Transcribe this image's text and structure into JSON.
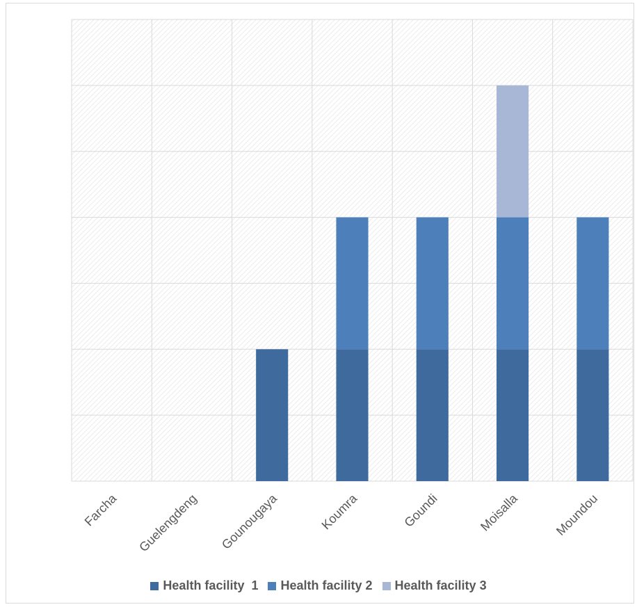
{
  "chart_data": {
    "type": "bar",
    "stacked": true,
    "categories": [
      "Farcha",
      "Guelengdeng",
      "Gounougaya",
      "Koumra",
      "Goundi",
      "Moisalla",
      "Moundou"
    ],
    "series": [
      {
        "name": "Health facility  1",
        "color": "#3f6a9d",
        "values": [
          0,
          0,
          1,
          1,
          1,
          1,
          1
        ]
      },
      {
        "name": "Health facility 2",
        "color": "#4d7fbb",
        "values": [
          0,
          0,
          0,
          1,
          1,
          1,
          1
        ]
      },
      {
        "name": "Health facility 3",
        "color": "#a8b7d6",
        "values": [
          0,
          0,
          0,
          0,
          0,
          1,
          0
        ]
      }
    ],
    "ylim": [
      0,
      3.5
    ],
    "grid": true,
    "legend_position": "bottom",
    "title": "",
    "xlabel": "",
    "ylabel": ""
  }
}
